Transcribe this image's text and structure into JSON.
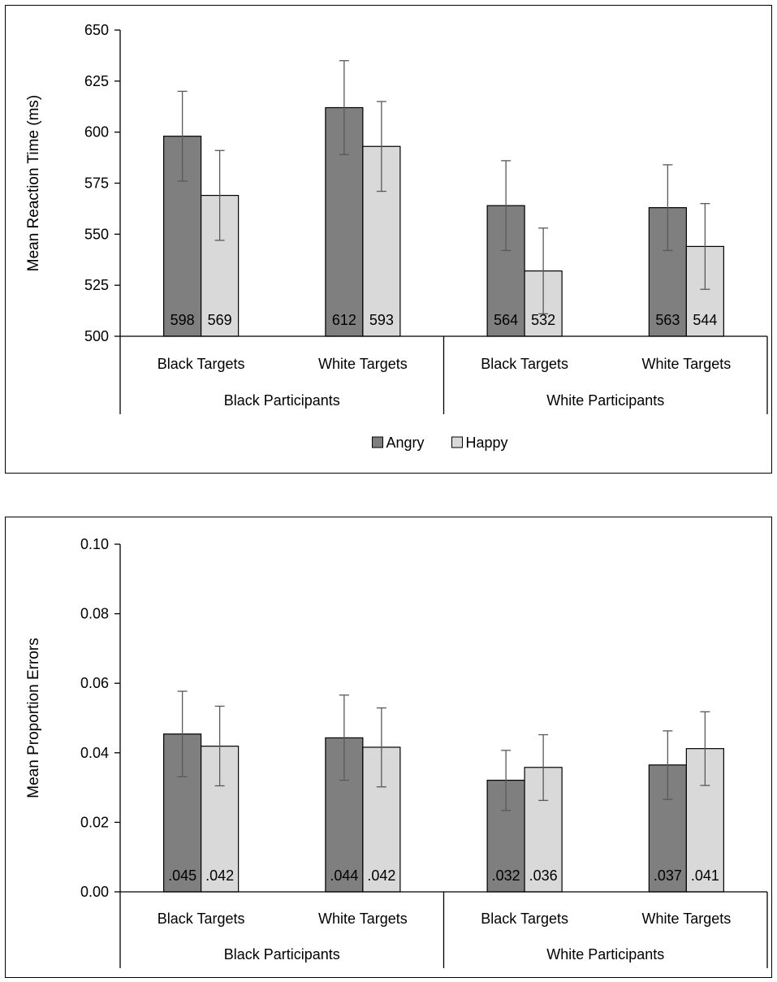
{
  "colors": {
    "angry": "#7f7f7f",
    "happy": "#d9d9d9",
    "bar_outline": "#000000",
    "axis": "#000000",
    "error_bar": "#595959"
  },
  "chart_data": [
    {
      "type": "bar",
      "ylabel": "Mean Reaction Time (ms)",
      "xlabel": "",
      "ylim": [
        500,
        650
      ],
      "yticks": [
        "500",
        "525",
        "550",
        "575",
        "600",
        "625",
        "650"
      ],
      "ytick_values": [
        500,
        525,
        550,
        575,
        600,
        625,
        650
      ],
      "categories": [
        "Black Targets",
        "White Targets",
        "Black Targets",
        "White Targets"
      ],
      "groups": [
        {
          "label": "Black Participants",
          "span": 2
        },
        {
          "label": "White Participants",
          "span": 2
        }
      ],
      "series": [
        {
          "name": "Angry",
          "color": "#7f7f7f",
          "values": [
            598,
            612,
            564,
            563
          ],
          "value_labels": [
            "598",
            "612",
            "564",
            "563"
          ],
          "error_low": [
            576,
            589,
            542,
            542
          ],
          "error_high": [
            620,
            635,
            586,
            584
          ]
        },
        {
          "name": "Happy",
          "color": "#d9d9d9",
          "values": [
            569,
            593,
            532,
            544
          ],
          "value_labels": [
            "569",
            "593",
            "532",
            "544"
          ],
          "error_low": [
            547,
            571,
            511,
            523
          ],
          "error_high": [
            591,
            615,
            553,
            565
          ]
        }
      ],
      "legend_position": "bottom",
      "grid": false
    },
    {
      "type": "bar",
      "ylabel": "Mean Proportion Errors",
      "xlabel": "",
      "ylim": [
        0.0,
        0.1
      ],
      "yticks": [
        "0.00",
        "0.02",
        "0.04",
        "0.06",
        "0.08",
        "0.10"
      ],
      "ytick_values": [
        0.0,
        0.02,
        0.04,
        0.06,
        0.08,
        0.1
      ],
      "categories": [
        "Black Targets",
        "White Targets",
        "Black Targets",
        "White Targets"
      ],
      "groups": [
        {
          "label": "Black Participants",
          "span": 2
        },
        {
          "label": "White Participants",
          "span": 2
        }
      ],
      "series": [
        {
          "name": "Angry",
          "color": "#7f7f7f",
          "values": [
            0.0454,
            0.0443,
            0.0321,
            0.0365
          ],
          "value_labels": [
            ".045",
            ".044",
            ".032",
            ".037"
          ],
          "error_low": [
            0.0331,
            0.0321,
            0.0234,
            0.0266
          ],
          "error_high": [
            0.0577,
            0.0566,
            0.0407,
            0.0463
          ]
        },
        {
          "name": "Happy",
          "color": "#d9d9d9",
          "values": [
            0.0419,
            0.0416,
            0.0358,
            0.0412
          ],
          "value_labels": [
            ".042",
            ".042",
            ".036",
            ".041"
          ],
          "error_low": [
            0.0305,
            0.0302,
            0.0263,
            0.0306
          ],
          "error_high": [
            0.0534,
            0.0529,
            0.0452,
            0.0518
          ]
        }
      ],
      "legend_position": "bottom",
      "grid": false
    }
  ]
}
